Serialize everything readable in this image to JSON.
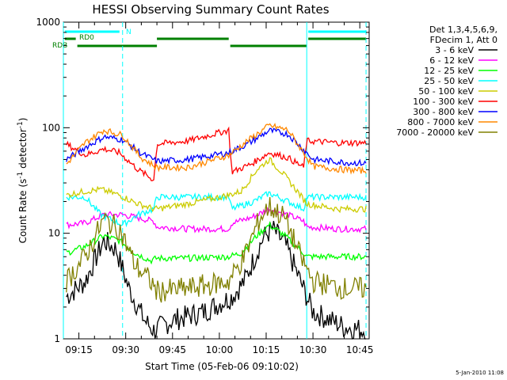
{
  "chart_data": {
    "type": "line",
    "title": "HESSI Observing Summary Count Rates",
    "xlabel": "Start Time (05-Feb-06 09:10:02)",
    "ylabel": "Count Rate (s⁻¹ detector⁻¹)",
    "footer": "5-Jan-2010 11:08",
    "y_scale": "log",
    "ylim": [
      1,
      1000
    ],
    "xlim": [
      "09:10:02",
      "10:48:00"
    ],
    "x_ticks": [
      "09:15",
      "09:30",
      "09:45",
      "10:00",
      "10:15",
      "10:30",
      "10:45"
    ],
    "y_ticks": [
      "1",
      "10",
      "100",
      "1000"
    ],
    "grid": false,
    "legend_header": [
      "Det 1,3,4,5,6,9,",
      "FDecim 1, Att 0"
    ],
    "legend_position": "right",
    "x_minutes_from_0900": {
      "start": 10.03,
      "end": 108
    },
    "vlines": {
      "cyan_solid": [
        "09:10:02",
        "10:28:00"
      ],
      "cyan_dashed": [
        "09:29:00",
        "10:47:00"
      ]
    },
    "flags": [
      {
        "label": "N",
        "color": "#00ffff",
        "row": 1,
        "spans": [
          [
            "09:10:30",
            "09:28:00"
          ],
          [
            "10:28:30",
            "10:47:00"
          ]
        ]
      },
      {
        "label": "RD0",
        "color": "#008000",
        "row": 2,
        "spans": [
          [
            "09:10:30",
            "09:14:00"
          ],
          [
            "09:40:00",
            "10:03:00"
          ],
          [
            "10:28:30",
            "10:47:00"
          ]
        ]
      },
      {
        "label": "RDB",
        "color": "#008000",
        "row": 3,
        "spans": [
          [
            "09:14:30",
            "09:40:00"
          ],
          [
            "10:03:30",
            "10:28:00"
          ]
        ]
      }
    ],
    "series": [
      {
        "name": "3 - 6 keV",
        "color": "#000000",
        "points": [
          [
            "09:11",
            2.5
          ],
          [
            "09:17",
            3.5
          ],
          [
            "09:23",
            8.5
          ],
          [
            "09:27",
            7
          ],
          [
            "09:31",
            3
          ],
          [
            "09:36",
            1.5
          ],
          [
            "09:39",
            1.2
          ],
          [
            "09:45",
            1.5
          ],
          [
            "09:55",
            1.8
          ],
          [
            "10:04",
            2.5
          ],
          [
            "10:08",
            3.5
          ],
          [
            "10:14",
            9
          ],
          [
            "10:17",
            11
          ],
          [
            "10:21",
            8
          ],
          [
            "10:26",
            3.5
          ],
          [
            "10:30",
            1.8
          ],
          [
            "10:40",
            1.3
          ],
          [
            "10:47",
            1.2
          ]
        ]
      },
      {
        "name": "6 - 12 keV",
        "color": "#ff00ff",
        "points": [
          [
            "09:11",
            12
          ],
          [
            "09:17",
            12.5
          ],
          [
            "09:23",
            15
          ],
          [
            "09:29",
            15
          ],
          [
            "09:34",
            14
          ],
          [
            "09:39",
            13
          ],
          [
            "09:40",
            11.5
          ],
          [
            "09:50",
            11
          ],
          [
            "10:03",
            11
          ],
          [
            "10:04",
            12.5
          ],
          [
            "10:10",
            14
          ],
          [
            "10:16",
            17
          ],
          [
            "10:22",
            15
          ],
          [
            "10:27",
            13
          ],
          [
            "10:28",
            11.5
          ],
          [
            "10:38",
            11
          ],
          [
            "10:47",
            11
          ]
        ]
      },
      {
        "name": "12 - 25 keV",
        "color": "#00ff00",
        "points": [
          [
            "09:11",
            6.5
          ],
          [
            "09:17",
            7.5
          ],
          [
            "09:23",
            9.5
          ],
          [
            "09:28",
            8.5
          ],
          [
            "09:33",
            6.5
          ],
          [
            "09:38",
            5.5
          ],
          [
            "09:40",
            5.8
          ],
          [
            "09:50",
            5.8
          ],
          [
            "10:03",
            6
          ],
          [
            "10:07",
            6.5
          ],
          [
            "10:12",
            9.5
          ],
          [
            "10:16",
            12
          ],
          [
            "10:21",
            9.5
          ],
          [
            "10:27",
            6.5
          ],
          [
            "10:28",
            6
          ],
          [
            "10:38",
            6
          ],
          [
            "10:47",
            6
          ]
        ]
      },
      {
        "name": "25 - 50 keV",
        "color": "#00ffff",
        "points": [
          [
            "09:11",
            22
          ],
          [
            "09:17",
            22
          ],
          [
            "09:22",
            15
          ],
          [
            "09:29",
            12
          ],
          [
            "09:34",
            15
          ],
          [
            "09:39",
            17
          ],
          [
            "09:40",
            22
          ],
          [
            "09:50",
            22
          ],
          [
            "10:03",
            22
          ],
          [
            "10:04",
            17
          ],
          [
            "10:11",
            20
          ],
          [
            "10:16",
            24
          ],
          [
            "10:22",
            20
          ],
          [
            "10:27",
            17
          ],
          [
            "10:28",
            22
          ],
          [
            "10:38",
            22
          ],
          [
            "10:47",
            22
          ]
        ]
      },
      {
        "name": "50 - 100 keV",
        "color": "#cccc00",
        "points": [
          [
            "09:11",
            23
          ],
          [
            "09:17",
            25
          ],
          [
            "09:22",
            26
          ],
          [
            "09:28",
            23
          ],
          [
            "09:34",
            19
          ],
          [
            "09:39",
            17
          ],
          [
            "09:40",
            17
          ],
          [
            "09:50",
            19
          ],
          [
            "10:03",
            23
          ],
          [
            "10:07",
            25
          ],
          [
            "10:12",
            40
          ],
          [
            "10:16",
            50
          ],
          [
            "10:20",
            38
          ],
          [
            "10:25",
            25
          ],
          [
            "10:28",
            19
          ],
          [
            "10:38",
            17
          ],
          [
            "10:47",
            17
          ]
        ]
      },
      {
        "name": "100 - 300 keV",
        "color": "#ff0000",
        "points": [
          [
            "09:11",
            70
          ],
          [
            "09:17",
            55
          ],
          [
            "09:23",
            63
          ],
          [
            "09:28",
            58
          ],
          [
            "09:34",
            40
          ],
          [
            "09:39",
            32
          ],
          [
            "09:40",
            70
          ],
          [
            "09:50",
            75
          ],
          [
            "10:03",
            95
          ],
          [
            "10:04",
            38
          ],
          [
            "10:10",
            45
          ],
          [
            "10:16",
            58
          ],
          [
            "10:22",
            52
          ],
          [
            "10:27",
            42
          ],
          [
            "10:28",
            75
          ],
          [
            "10:38",
            72
          ],
          [
            "10:47",
            72
          ]
        ]
      },
      {
        "name": "300 - 800 keV",
        "color": "#0000ff",
        "points": [
          [
            "09:11",
            50
          ],
          [
            "09:17",
            65
          ],
          [
            "09:23",
            82
          ],
          [
            "09:29",
            77
          ],
          [
            "09:35",
            57
          ],
          [
            "09:40",
            48
          ],
          [
            "09:50",
            50
          ],
          [
            "10:03",
            58
          ],
          [
            "10:09",
            70
          ],
          [
            "10:16",
            94
          ],
          [
            "10:22",
            87
          ],
          [
            "10:27",
            62
          ],
          [
            "10:30",
            50
          ],
          [
            "10:40",
            47
          ],
          [
            "10:47",
            46
          ]
        ]
      },
      {
        "name": "800 - 7000 keV",
        "color": "#ff8800",
        "points": [
          [
            "09:11",
            45
          ],
          [
            "09:17",
            72
          ],
          [
            "09:23",
            95
          ],
          [
            "09:29",
            85
          ],
          [
            "09:35",
            52
          ],
          [
            "09:40",
            42
          ],
          [
            "09:50",
            42
          ],
          [
            "10:03",
            55
          ],
          [
            "10:09",
            75
          ],
          [
            "10:16",
            105
          ],
          [
            "10:22",
            95
          ],
          [
            "10:27",
            58
          ],
          [
            "10:30",
            43
          ],
          [
            "10:40",
            40
          ],
          [
            "10:47",
            39
          ]
        ]
      },
      {
        "name": "7000 - 20000 keV",
        "color": "#808000",
        "points": [
          [
            "09:11",
            3.5
          ],
          [
            "09:17",
            6
          ],
          [
            "09:23",
            13.5
          ],
          [
            "09:28",
            11
          ],
          [
            "09:33",
            5
          ],
          [
            "09:38",
            3.5
          ],
          [
            "09:40",
            2.8
          ],
          [
            "09:50",
            3
          ],
          [
            "10:03",
            3.5
          ],
          [
            "10:08",
            6
          ],
          [
            "10:13",
            14
          ],
          [
            "10:16",
            18
          ],
          [
            "10:21",
            14
          ],
          [
            "10:26",
            6
          ],
          [
            "10:30",
            3.5
          ],
          [
            "10:40",
            3
          ],
          [
            "10:47",
            3
          ]
        ]
      }
    ]
  }
}
